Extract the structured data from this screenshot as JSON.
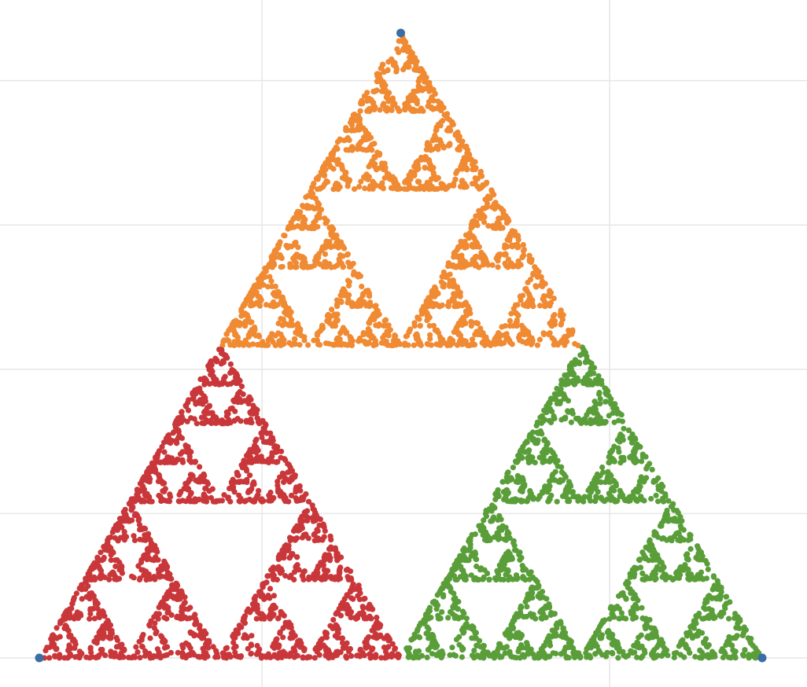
{
  "chart_data": {
    "type": "scatter",
    "title": "",
    "xlabel": "",
    "ylabel": "",
    "grid": true,
    "legend": "none",
    "xlim": [
      -0.05,
      1.12
    ],
    "ylim": [
      -0.04,
      0.95
    ],
    "vertices": [
      {
        "x": 0,
        "y": 0
      },
      {
        "x": 1,
        "y": 0
      },
      {
        "x": 0.5,
        "y": 0.866
      }
    ],
    "vertex_color": "#3a6ea5",
    "series": [
      {
        "color": "#c9373a",
        "corner": 0
      },
      {
        "color": "#5a9e3a",
        "corner": 1
      },
      {
        "color": "#f08a33",
        "corner": 2
      }
    ],
    "generation": {
      "method": "chaos-game",
      "iterations": 5500
    }
  }
}
